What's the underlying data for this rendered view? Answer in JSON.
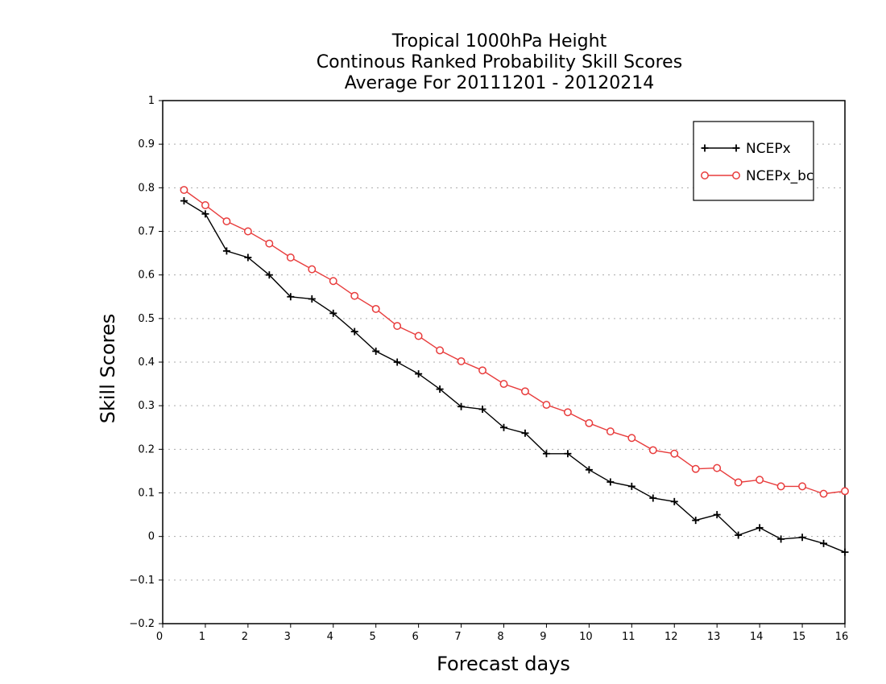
{
  "chart_data": {
    "type": "line",
    "title_lines": [
      "Tropical 1000hPa Height",
      "Continous Ranked Probability Skill Scores",
      "Average For 20111201 - 20120214"
    ],
    "xlabel": "Forecast days",
    "ylabel": "Skill Scores",
    "xlim": [
      0,
      16
    ],
    "ylim": [
      -0.2,
      1
    ],
    "x_ticks": [
      0,
      1,
      2,
      3,
      4,
      5,
      6,
      7,
      8,
      9,
      10,
      11,
      12,
      13,
      14,
      15,
      16
    ],
    "y_ticks": [
      -0.2,
      -0.1,
      0,
      0.1,
      0.2,
      0.3,
      0.4,
      0.5,
      0.6,
      0.7,
      0.8,
      0.9,
      1
    ],
    "y_tick_labels": [
      "−0.2",
      "−0.1",
      "0",
      "0.1",
      "0.2",
      "0.3",
      "0.4",
      "0.5",
      "0.6",
      "0.7",
      "0.8",
      "0.9",
      "1"
    ],
    "grid": "horizontal dotted",
    "legend_position": "top-right",
    "x": [
      0.5,
      1,
      1.5,
      2,
      2.5,
      3,
      3.5,
      4,
      4.5,
      5,
      5.5,
      6,
      6.5,
      7,
      7.5,
      8,
      8.5,
      9,
      9.5,
      10,
      10.5,
      11,
      11.5,
      12,
      12.5,
      13,
      13.5,
      14,
      14.5,
      15,
      15.5,
      16
    ],
    "series": [
      {
        "name": "NCEPx",
        "color": "#000000",
        "marker": "plus",
        "values": [
          0.77,
          0.74,
          0.655,
          0.64,
          0.6,
          0.55,
          0.545,
          0.512,
          0.47,
          0.425,
          0.4,
          0.373,
          0.338,
          0.298,
          0.292,
          0.25,
          0.237,
          0.19,
          0.19,
          0.153,
          0.125,
          0.115,
          0.088,
          0.08,
          0.037,
          0.05,
          0.003,
          0.02,
          -0.006,
          -0.002,
          -0.016,
          -0.036
        ]
      },
      {
        "name": "NCEPx_bc",
        "color": "#e83c3c",
        "marker": "circle",
        "values": [
          0.795,
          0.76,
          0.723,
          0.7,
          0.672,
          0.64,
          0.613,
          0.586,
          0.552,
          0.522,
          0.483,
          0.46,
          0.427,
          0.402,
          0.381,
          0.35,
          0.333,
          0.302,
          0.285,
          0.26,
          0.241,
          0.226,
          0.198,
          0.19,
          0.155,
          0.157,
          0.124,
          0.13,
          0.115,
          0.115,
          0.098,
          0.104
        ]
      }
    ]
  }
}
